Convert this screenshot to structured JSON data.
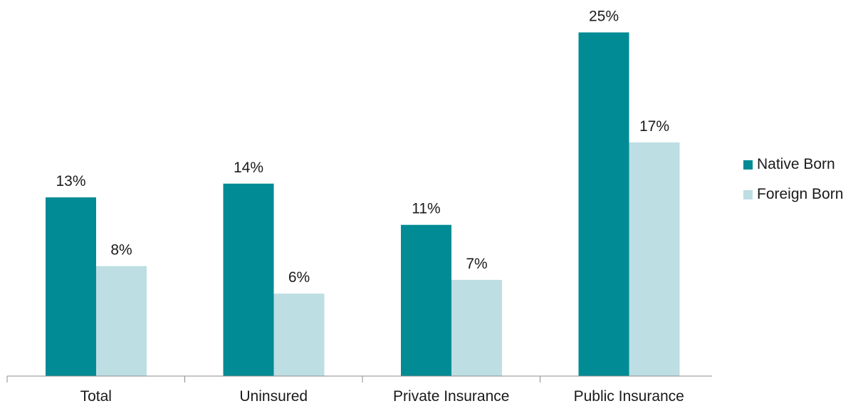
{
  "chart_data": {
    "type": "bar",
    "categories": [
      "Total",
      "Uninsured",
      "Private Insurance",
      "Public Insurance"
    ],
    "series": [
      {
        "name": "Native Born",
        "values": [
          13,
          14,
          11,
          25
        ],
        "labels": [
          "13%",
          "14%",
          "11%",
          "25%"
        ],
        "color": "#008b95"
      },
      {
        "name": "Foreign Born",
        "values": [
          8,
          6,
          7,
          17
        ],
        "labels": [
          "8%",
          "6%",
          "7%",
          "17%"
        ],
        "color": "#bddee3"
      }
    ],
    "title": "",
    "xlabel": "",
    "ylabel": "",
    "ylim": [
      0,
      25
    ],
    "grid": false,
    "legend_position": "right"
  }
}
